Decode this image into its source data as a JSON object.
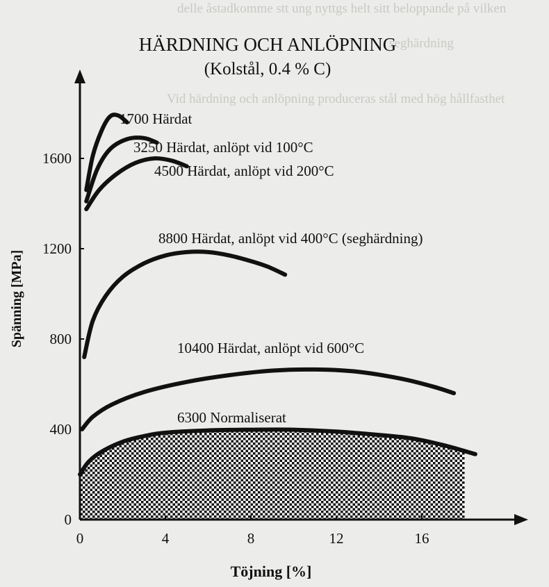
{
  "chart_data": {
    "type": "line",
    "title": "HÄRDNING OCH ANLÖPNING",
    "subtitle": "(Kolstål, 0.4 % C)",
    "xlabel": "Töjning [%]",
    "ylabel": "Spänning [MPa]",
    "xlim": [
      0,
      20
    ],
    "ylim": [
      0,
      1800
    ],
    "x_ticks": [
      0,
      4,
      8,
      12,
      16
    ],
    "y_ticks": [
      0,
      400,
      800,
      1200,
      1600
    ],
    "grid": false,
    "legend": "none",
    "series": [
      {
        "name": "1700 Härdat",
        "points": [
          [
            0.3,
            1460
          ],
          [
            0.6,
            1610
          ],
          [
            1.0,
            1720
          ],
          [
            1.4,
            1785
          ],
          [
            1.8,
            1790
          ],
          [
            2.2,
            1760
          ]
        ]
      },
      {
        "name": "3250 Härdat, anlöpt vid 100°C",
        "points": [
          [
            0.3,
            1410
          ],
          [
            0.8,
            1550
          ],
          [
            1.4,
            1640
          ],
          [
            2.2,
            1685
          ],
          [
            3.0,
            1690
          ],
          [
            3.6,
            1670
          ]
        ]
      },
      {
        "name": "4500 Härdat, anlöpt vid 200°C",
        "points": [
          [
            0.3,
            1375
          ],
          [
            0.9,
            1460
          ],
          [
            1.7,
            1530
          ],
          [
            2.6,
            1580
          ],
          [
            3.5,
            1600
          ],
          [
            4.3,
            1590
          ],
          [
            5.0,
            1565
          ]
        ]
      },
      {
        "name": "8800 Härdat, anlöpt vid 400°C (seghärdning)",
        "points": [
          [
            0.2,
            720
          ],
          [
            0.6,
            880
          ],
          [
            1.2,
            990
          ],
          [
            2.0,
            1075
          ],
          [
            3.0,
            1135
          ],
          [
            4.0,
            1170
          ],
          [
            5.0,
            1185
          ],
          [
            6.0,
            1185
          ],
          [
            7.0,
            1170
          ],
          [
            8.0,
            1145
          ],
          [
            8.8,
            1120
          ],
          [
            9.6,
            1085
          ]
        ]
      },
      {
        "name": "10400 Härdat, anlöpt vid 600°C",
        "points": [
          [
            0.1,
            400
          ],
          [
            0.6,
            455
          ],
          [
            1.5,
            510
          ],
          [
            3.0,
            565
          ],
          [
            5.0,
            610
          ],
          [
            7.0,
            640
          ],
          [
            9.0,
            660
          ],
          [
            11.0,
            665
          ],
          [
            13.0,
            655
          ],
          [
            15.0,
            625
          ],
          [
            16.5,
            590
          ],
          [
            17.5,
            560
          ]
        ]
      },
      {
        "name": "6300 Normaliserat",
        "points": [
          [
            0,
            200
          ],
          [
            0.4,
            255
          ],
          [
            1.0,
            300
          ],
          [
            2.0,
            345
          ],
          [
            3.0,
            370
          ],
          [
            4.0,
            385
          ],
          [
            6.0,
            395
          ],
          [
            8.0,
            398
          ],
          [
            10.0,
            398
          ],
          [
            12.0,
            390
          ],
          [
            14.0,
            375
          ],
          [
            15.5,
            360
          ],
          [
            17.0,
            330
          ],
          [
            18.5,
            290
          ]
        ]
      }
    ]
  },
  "colors": {
    "ink": "#111111",
    "paper": "#ececea"
  }
}
